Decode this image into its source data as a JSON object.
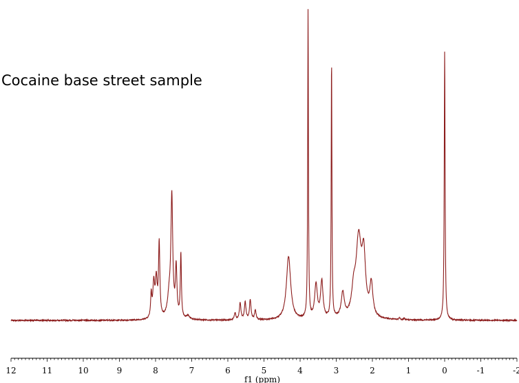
{
  "chart_data": {
    "type": "line",
    "title": "Cocaine base street sample",
    "xlabel": "f1 (ppm)",
    "ylabel": "",
    "xlim": [
      12,
      -2
    ],
    "x_reversed": true,
    "ylim": [
      0,
      1
    ],
    "grid": false,
    "y_axis_shown": false,
    "x_ticks": [
      12,
      11,
      10,
      9,
      8,
      7,
      6,
      5,
      4,
      3,
      2,
      1,
      0,
      -1,
      -2
    ],
    "x_tick_labels": [
      "12",
      "11",
      "10",
      "9",
      "8",
      "7",
      "6",
      "5",
      "4",
      "3",
      "2",
      "1",
      "0",
      "-1",
      "-2"
    ],
    "series": [
      {
        "color": "#8b1a1a",
        "peaks": [
          {
            "ppm": 8.12,
            "height": 0.075,
            "width": 0.02
          },
          {
            "ppm": 8.05,
            "height": 0.11,
            "width": 0.03
          },
          {
            "ppm": 7.98,
            "height": 0.12,
            "width": 0.03
          },
          {
            "ppm": 7.9,
            "height": 0.24,
            "width": 0.022
          },
          {
            "ppm": 7.62,
            "height": 0.07,
            "width": 0.06
          },
          {
            "ppm": 7.55,
            "height": 0.38,
            "width": 0.03
          },
          {
            "ppm": 7.43,
            "height": 0.16,
            "width": 0.025
          },
          {
            "ppm": 7.3,
            "height": 0.21,
            "width": 0.018
          },
          {
            "ppm": 7.1,
            "height": 0.012,
            "width": 0.05
          },
          {
            "ppm": 5.8,
            "height": 0.022,
            "width": 0.025
          },
          {
            "ppm": 5.66,
            "height": 0.055,
            "width": 0.025
          },
          {
            "ppm": 5.52,
            "height": 0.058,
            "width": 0.025
          },
          {
            "ppm": 5.38,
            "height": 0.065,
            "width": 0.025
          },
          {
            "ppm": 5.24,
            "height": 0.03,
            "width": 0.025
          },
          {
            "ppm": 4.32,
            "height": 0.205,
            "width": 0.07
          },
          {
            "ppm": 3.78,
            "height": 1.0,
            "width": 0.012
          },
          {
            "ppm": 3.56,
            "height": 0.11,
            "width": 0.045
          },
          {
            "ppm": 3.4,
            "height": 0.12,
            "width": 0.04
          },
          {
            "ppm": 3.13,
            "height": 0.84,
            "width": 0.012
          },
          {
            "ppm": 2.82,
            "height": 0.08,
            "width": 0.05
          },
          {
            "ppm": 2.52,
            "height": 0.07,
            "width": 0.06
          },
          {
            "ppm": 2.38,
            "height": 0.25,
            "width": 0.09
          },
          {
            "ppm": 2.24,
            "height": 0.18,
            "width": 0.06
          },
          {
            "ppm": 2.03,
            "height": 0.105,
            "width": 0.05
          },
          {
            "ppm": 1.25,
            "height": 0.006,
            "width": 0.02
          },
          {
            "ppm": 1.12,
            "height": 0.005,
            "width": 0.02
          },
          {
            "ppm": 0.0,
            "height": 0.87,
            "width": 0.014
          }
        ],
        "noise_amplitude": 0.004
      }
    ]
  }
}
